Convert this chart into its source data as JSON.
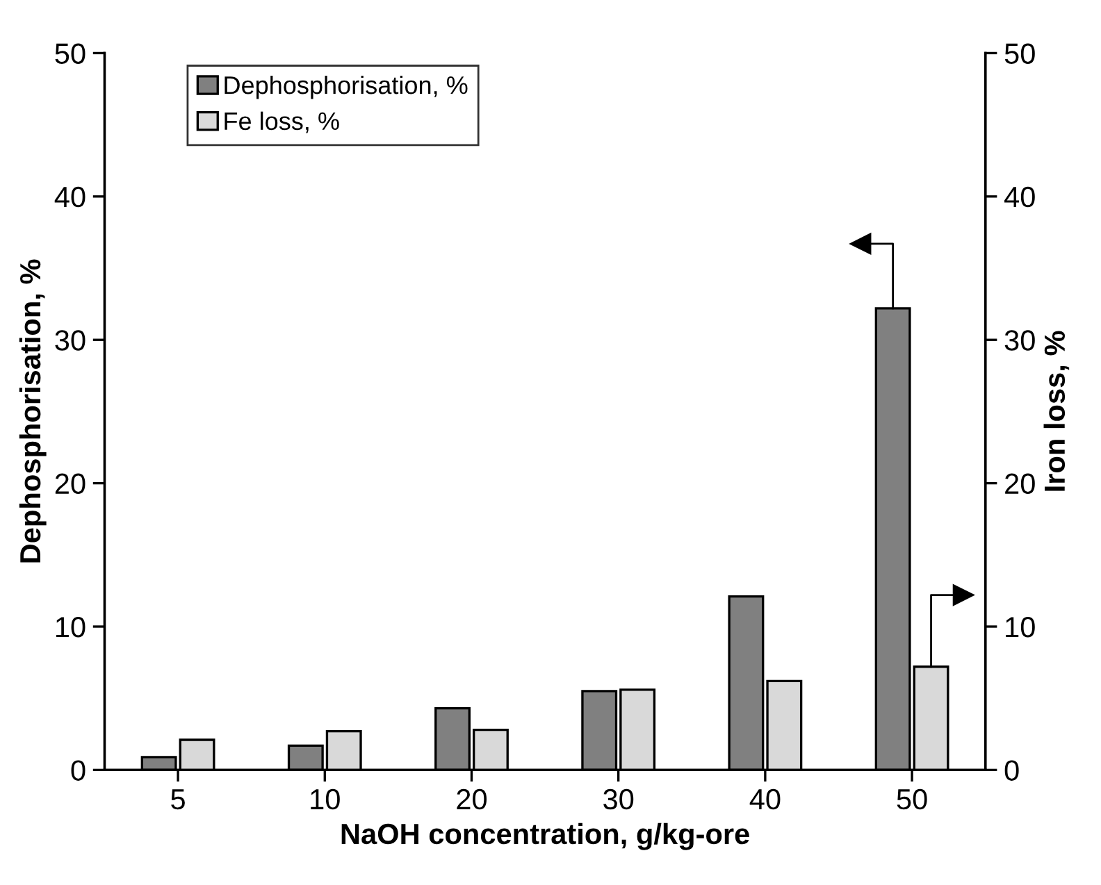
{
  "chart_data": {
    "type": "bar",
    "xlabel": "NaOH concentration, g/kg-ore",
    "ylabel": "Dephosphorisation, %",
    "y2label": "Iron loss, %",
    "categories": [
      "5",
      "10",
      "20",
      "30",
      "40",
      "50"
    ],
    "series": [
      {
        "name": "Dephosphorisation, %",
        "color": "#808080",
        "values": [
          0.9,
          1.7,
          4.3,
          5.5,
          12.1,
          32.2
        ]
      },
      {
        "name": "Fe loss, %",
        "color": "#d9d9d9",
        "axis": "y2",
        "values": [
          2.1,
          2.7,
          2.8,
          5.6,
          6.2,
          7.2
        ]
      }
    ],
    "ylim": [
      0,
      50
    ],
    "yticks": [
      0,
      10,
      20,
      30,
      40,
      50
    ],
    "y2lim": [
      0,
      50
    ],
    "y2ticks": [
      0,
      10,
      20,
      30,
      40,
      50
    ],
    "grid": false,
    "legend": "top left"
  }
}
